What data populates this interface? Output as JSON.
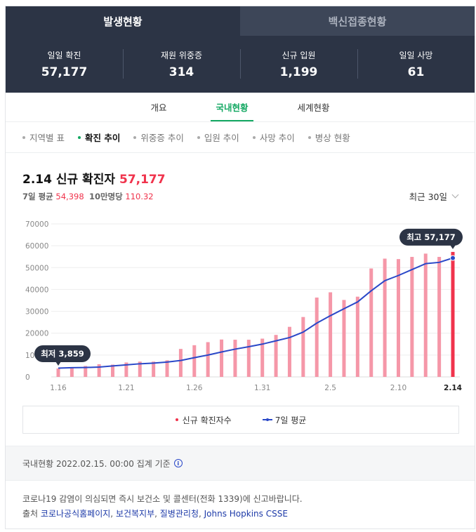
{
  "top_tabs": [
    {
      "label": "발생현황",
      "active": true
    },
    {
      "label": "백신접종현황",
      "active": false
    }
  ],
  "stats": [
    {
      "label": "일일 확진",
      "value": "57,177"
    },
    {
      "label": "재원 위중증",
      "value": "314"
    },
    {
      "label": "신규 입원",
      "value": "1,199"
    },
    {
      "label": "일일 사망",
      "value": "61"
    }
  ],
  "sub_tabs": [
    {
      "label": "개요"
    },
    {
      "label": "국내현황",
      "active": true
    },
    {
      "label": "세계현황"
    }
  ],
  "filters": [
    {
      "label": "지역별 표"
    },
    {
      "label": "확진 추이",
      "active": true
    },
    {
      "label": "위중증 추이"
    },
    {
      "label": "입원 추이"
    },
    {
      "label": "사망 추이"
    },
    {
      "label": "병상 현황"
    }
  ],
  "header": {
    "title": "2.14 신규 확진자",
    "value": "57,177",
    "avg_label": "7일 평균",
    "avg_value": "54,398",
    "per_label": "10만명당",
    "per_value": "110.32",
    "period": "최근 30일"
  },
  "chart_data": {
    "type": "bar",
    "categories": [
      "1.16",
      "1.17",
      "1.18",
      "1.19",
      "1.20",
      "1.21",
      "1.22",
      "1.23",
      "1.24",
      "1.25",
      "1.26",
      "1.27",
      "1.28",
      "1.29",
      "1.30",
      "1.31",
      "2.1",
      "2.2",
      "2.3",
      "2.4",
      "2.5",
      "2.6",
      "2.7",
      "2.8",
      "2.9",
      "2.10",
      "2.11",
      "2.12",
      "2.13",
      "2.14"
    ],
    "x_tick_labels": [
      "1.16",
      "1.21",
      "1.26",
      "1.31",
      "2.5",
      "2.10",
      "2.14"
    ],
    "series": [
      {
        "name": "신규 확진자수",
        "color": "#f597a8",
        "highlight_color": "#f0334c",
        "values": [
          3859,
          4194,
          5000,
          5800,
          5600,
          6600,
          7000,
          7000,
          7600,
          12800,
          14500,
          15900,
          17100,
          17000,
          17000,
          17500,
          19200,
          22900,
          27400,
          36300,
          38700,
          35200,
          36700,
          49600,
          54100,
          53900,
          54900,
          56400,
          54900,
          57177
        ]
      },
      {
        "name": "7일 평균",
        "color": "#2a48c8",
        "values": [
          4000,
          4200,
          4300,
          4500,
          5000,
          5500,
          6000,
          6300,
          6800,
          7500,
          8800,
          10000,
          11400,
          12700,
          13800,
          15000,
          16500,
          18000,
          20500,
          24600,
          28000,
          31200,
          34300,
          39400,
          44000,
          46400,
          49100,
          51800,
          52400,
          54398
        ]
      }
    ],
    "ylim": [
      0,
      70000
    ],
    "yticks": [
      "0",
      "10000",
      "20000",
      "30000",
      "40000",
      "50000",
      "60000",
      "70000"
    ],
    "annotations": [
      {
        "label": "최저 3,859",
        "index": 0
      },
      {
        "label": "최고 57,177",
        "index": 29
      }
    ],
    "grid": true,
    "legend_position": "bottom"
  },
  "legend": {
    "bars": "신규 확진자수",
    "line": "7일 평균"
  },
  "footer": {
    "basis": "국내현황 2022.02.15. 00:00 집계 기준",
    "info_icon": "info-icon",
    "notice": "코로나19 감염이 의심되면 즉시 보건소 및 콜센터(전화 1339)에 신고바랍니다.",
    "source_prefix": "출처",
    "sources": [
      "코로나공식홈페이지",
      "보건복지부",
      "질병관리청",
      "Johns Hopkins CSSE"
    ]
  }
}
